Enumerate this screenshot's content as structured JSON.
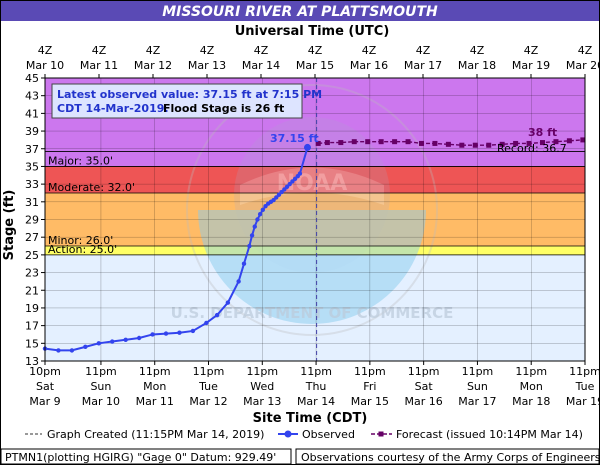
{
  "header": {
    "title": "MISSOURI RIVER AT PLATTSMOUTH",
    "utc_label": "Universal Time (UTC)"
  },
  "axes": {
    "ylabel": "Stage (ft)",
    "xlabel": "Site Time (CDT)",
    "utc_ticks": [
      {
        "top": "4Z",
        "bottom": "Mar 10"
      },
      {
        "top": "4Z",
        "bottom": "Mar 11"
      },
      {
        "top": "4Z",
        "bottom": "Mar 12"
      },
      {
        "top": "4Z",
        "bottom": "Mar 13"
      },
      {
        "top": "4Z",
        "bottom": "Mar 14"
      },
      {
        "top": "4Z",
        "bottom": "Mar 15"
      },
      {
        "top": "4Z",
        "bottom": "Mar 16"
      },
      {
        "top": "4Z",
        "bottom": "Mar 17"
      },
      {
        "top": "4Z",
        "bottom": "Mar 18"
      },
      {
        "top": "4Z",
        "bottom": "Mar 19"
      },
      {
        "top": "4Z",
        "bottom": "Mar 20"
      }
    ],
    "local_ticks": [
      {
        "l1": "10pm",
        "l2": "Sat",
        "l3": "Mar 9"
      },
      {
        "l1": "11pm",
        "l2": "Sun",
        "l3": "Mar 10"
      },
      {
        "l1": "11pm",
        "l2": "Mon",
        "l3": "Mar 11"
      },
      {
        "l1": "11pm",
        "l2": "Tue",
        "l3": "Mar 12"
      },
      {
        "l1": "11pm",
        "l2": "Wed",
        "l3": "Mar 13"
      },
      {
        "l1": "11pm",
        "l2": "Thu",
        "l3": "Mar 14"
      },
      {
        "l1": "11pm",
        "l2": "Fri",
        "l3": "Mar 15"
      },
      {
        "l1": "11pm",
        "l2": "Sat",
        "l3": "Mar 16"
      },
      {
        "l1": "11pm",
        "l2": "Sun",
        "l3": "Mar 17"
      },
      {
        "l1": "11pm",
        "l2": "Mon",
        "l3": "Mar 18"
      },
      {
        "l1": "11pm",
        "l2": "Tue",
        "l3": "Mar 19"
      }
    ]
  },
  "info_box": {
    "line1": "Latest observed value: 37.15 ft at 7:15 PM",
    "line2a": "CDT 14-Mar-2019.",
    "line2b": "Flood Stage is 26 ft"
  },
  "annotations": {
    "observed_value": "37.15 ft",
    "forecast_peak": "38 ft",
    "record": "Record: 36.7"
  },
  "legend": {
    "created": "Graph Created (11:15PM Mar 14, 2019)",
    "observed": "Observed",
    "forecast": "Forecast (issued 10:14PM Mar 14)"
  },
  "footer": {
    "left": "PTMN1(plotting HGIRG) \"Gage 0\" Datum: 929.49'",
    "right": "Observations courtesy of the Army Corps of Engineers"
  },
  "colors": {
    "title_bg": "#5a4ab5",
    "major": "#cc77ee",
    "moderate": "#ee5555",
    "minor": "#ffbb66",
    "action": "#ffff66",
    "observed": "#3344ee",
    "forecast": "#660066",
    "info_bg": "#dde4ff"
  },
  "chart_data": {
    "type": "line",
    "ylim": [
      13,
      45
    ],
    "yticks": [
      13,
      15,
      17,
      19,
      21,
      23,
      25,
      27,
      29,
      31,
      33,
      35,
      37,
      39,
      41,
      43,
      45
    ],
    "x_unit": "days since 10pm CDT Mar 9, 2019",
    "xlim": [
      0,
      10.04
    ],
    "graph_created_x": 5.05,
    "thresholds": [
      {
        "name": "Major",
        "label": "Major: 35.0'",
        "value": 35.0,
        "color": "#cc77ee"
      },
      {
        "name": "Moderate",
        "label": "Moderate: 32.0'",
        "value": 32.0,
        "color": "#ee5555"
      },
      {
        "name": "Minor",
        "label": "Minor: 26.0'",
        "value": 26.0,
        "color": "#ffbb66"
      },
      {
        "name": "Action",
        "label": "Action: 25.0'",
        "value": 25.0,
        "color": "#ffff66"
      }
    ],
    "record": 36.7,
    "series": [
      {
        "name": "Observed",
        "color": "#3344ee",
        "x": [
          0,
          0.25,
          0.5,
          0.75,
          1.0,
          1.25,
          1.5,
          1.75,
          2.0,
          2.25,
          2.5,
          2.75,
          3.0,
          3.2,
          3.4,
          3.6,
          3.7,
          3.8,
          3.85,
          3.9,
          3.95,
          4.0,
          4.05,
          4.1,
          4.15,
          4.2,
          4.25,
          4.3,
          4.35,
          4.4,
          4.45,
          4.5,
          4.55,
          4.6,
          4.65,
          4.7,
          4.74,
          4.88
        ],
        "y": [
          14.4,
          14.2,
          14.2,
          14.6,
          15.0,
          15.2,
          15.4,
          15.6,
          16.0,
          16.1,
          16.2,
          16.4,
          17.3,
          18.2,
          19.6,
          22.0,
          24.0,
          26.0,
          27.2,
          28.2,
          29.0,
          29.6,
          30.1,
          30.5,
          30.8,
          31.0,
          31.2,
          31.5,
          31.8,
          32.1,
          32.4,
          32.7,
          33.0,
          33.3,
          33.6,
          33.9,
          34.2,
          37.15
        ],
        "markers": "all"
      },
      {
        "name": "Forecast",
        "color": "#660066",
        "x": [
          5.08,
          5.25,
          5.5,
          5.75,
          6.0,
          6.25,
          6.5,
          6.75,
          7.0,
          7.25,
          7.5,
          7.75,
          8.0,
          8.25,
          8.5,
          8.75,
          9.0,
          9.25,
          9.5,
          9.75,
          10.0
        ],
        "y": [
          37.6,
          37.7,
          37.7,
          37.8,
          37.8,
          37.8,
          37.8,
          37.8,
          37.6,
          37.6,
          37.5,
          37.4,
          37.4,
          37.4,
          37.5,
          37.6,
          37.6,
          37.7,
          37.8,
          37.9,
          38.0
        ]
      }
    ]
  }
}
